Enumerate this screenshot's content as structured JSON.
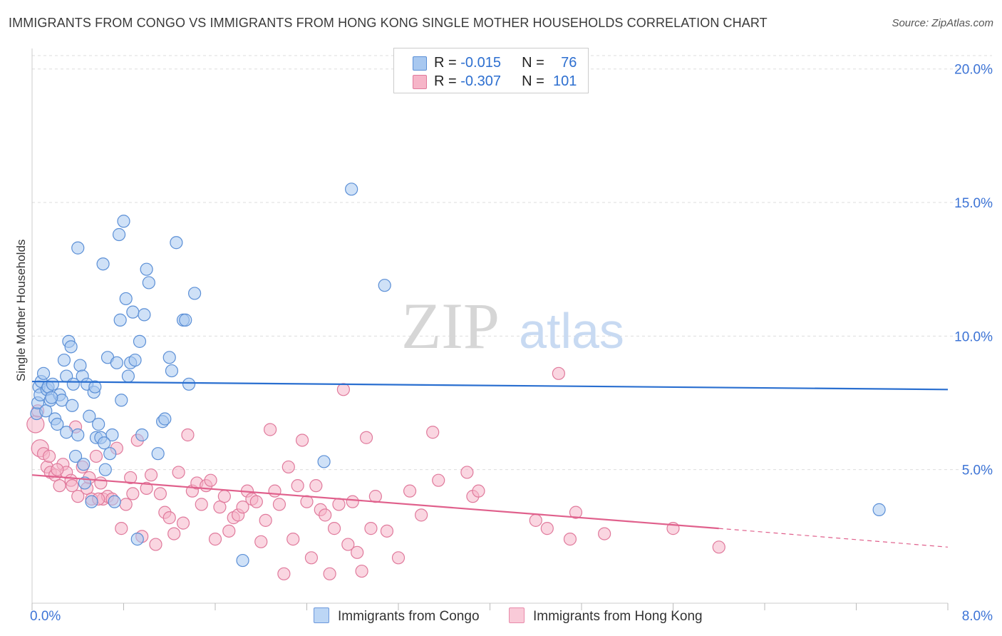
{
  "title": "IMMIGRANTS FROM CONGO VS IMMIGRANTS FROM HONG KONG SINGLE MOTHER HOUSEHOLDS CORRELATION CHART",
  "source": "Source: ZipAtlas.com",
  "watermark": {
    "zip": "ZIP",
    "atlas": "atlas"
  },
  "legend": {
    "rows": [
      {
        "r_label": "R = ",
        "r_value": "-0.015",
        "n_label": "N = ",
        "n_value": "76"
      },
      {
        "r_label": "R = ",
        "r_value": "-0.307",
        "n_label": "N = ",
        "n_value": "101"
      }
    ]
  },
  "bottom_legend": [
    "Immigrants from Congo",
    "Immigrants from Hong Kong"
  ],
  "colors": {
    "congo_fill": "#a8c8f0",
    "congo_stroke": "#5b8fd6",
    "congo_line": "#2a6fd0",
    "hk_fill": "#f6b5c8",
    "hk_stroke": "#e07a9c",
    "hk_line": "#e0608c",
    "tick_label": "#3d74d6",
    "grid": "#dddddd"
  },
  "chart_data": {
    "type": "scatter",
    "title": "IMMIGRANTS FROM CONGO VS IMMIGRANTS FROM HONG KONG SINGLE MOTHER HOUSEHOLDS CORRELATION CHART",
    "xlabel": "",
    "ylabel": "Single Mother Households",
    "xlim": [
      0,
      8
    ],
    "ylim": [
      0,
      20.5
    ],
    "x_tick_labels": [
      "0.0%",
      "8.0%"
    ],
    "y_ticks": [
      5,
      10,
      15,
      20
    ],
    "y_tick_labels": [
      "5.0%",
      "10.0%",
      "15.0%",
      "20.0%"
    ],
    "series": [
      {
        "name": "Immigrants from Congo",
        "R": -0.015,
        "N": 76,
        "trend": {
          "x0": 0,
          "y0": 8.3,
          "x1": 8,
          "y1": 8.0
        },
        "points": [
          [
            0.04,
            7.1
          ],
          [
            0.05,
            7.5
          ],
          [
            0.06,
            8.1
          ],
          [
            0.07,
            7.8
          ],
          [
            0.08,
            8.3
          ],
          [
            0.1,
            8.6
          ],
          [
            0.12,
            7.2
          ],
          [
            0.13,
            8.0
          ],
          [
            0.14,
            8.1
          ],
          [
            0.16,
            7.6
          ],
          [
            0.18,
            8.2
          ],
          [
            0.2,
            6.9
          ],
          [
            0.22,
            6.7
          ],
          [
            0.24,
            7.8
          ],
          [
            0.26,
            7.6
          ],
          [
            0.28,
            9.1
          ],
          [
            0.3,
            8.5
          ],
          [
            0.32,
            9.8
          ],
          [
            0.34,
            9.6
          ],
          [
            0.36,
            8.2
          ],
          [
            0.38,
            5.5
          ],
          [
            0.4,
            6.3
          ],
          [
            0.42,
            8.9
          ],
          [
            0.44,
            8.5
          ],
          [
            0.46,
            4.5
          ],
          [
            0.48,
            8.2
          ],
          [
            0.5,
            7.0
          ],
          [
            0.52,
            3.8
          ],
          [
            0.54,
            7.9
          ],
          [
            0.56,
            6.2
          ],
          [
            0.58,
            6.7
          ],
          [
            0.6,
            6.2
          ],
          [
            0.62,
            12.7
          ],
          [
            0.64,
            5.0
          ],
          [
            0.66,
            9.2
          ],
          [
            0.68,
            5.6
          ],
          [
            0.7,
            6.3
          ],
          [
            0.72,
            3.8
          ],
          [
            0.74,
            9.0
          ],
          [
            0.76,
            13.8
          ],
          [
            0.78,
            7.6
          ],
          [
            0.8,
            14.3
          ],
          [
            0.82,
            11.4
          ],
          [
            0.84,
            8.5
          ],
          [
            0.86,
            9.0
          ],
          [
            0.88,
            10.9
          ],
          [
            0.9,
            9.1
          ],
          [
            0.92,
            2.4
          ],
          [
            0.94,
            9.8
          ],
          [
            0.96,
            6.3
          ],
          [
            0.98,
            10.8
          ],
          [
            1.0,
            12.5
          ],
          [
            1.02,
            12.0
          ],
          [
            1.1,
            5.6
          ],
          [
            1.14,
            6.8
          ],
          [
            1.16,
            6.9
          ],
          [
            1.2,
            9.2
          ],
          [
            1.22,
            8.7
          ],
          [
            1.26,
            13.5
          ],
          [
            1.32,
            10.6
          ],
          [
            1.34,
            10.6
          ],
          [
            1.37,
            8.2
          ],
          [
            1.42,
            11.6
          ],
          [
            1.84,
            1.6
          ],
          [
            2.55,
            5.3
          ],
          [
            2.79,
            15.5
          ],
          [
            3.08,
            11.9
          ],
          [
            7.4,
            3.5
          ],
          [
            0.4,
            13.3
          ],
          [
            0.77,
            10.6
          ],
          [
            0.35,
            7.4
          ],
          [
            0.3,
            6.4
          ],
          [
            0.17,
            7.7
          ],
          [
            0.55,
            8.1
          ],
          [
            0.63,
            6.0
          ],
          [
            0.45,
            5.2
          ]
        ]
      },
      {
        "name": "Immigrants from Hong Kong",
        "R": -0.307,
        "N": 101,
        "trend": {
          "x0": 0,
          "y0": 4.8,
          "x1": 6.0,
          "y1": 2.8,
          "dash_to_x": 8,
          "dash_to_y": 2.1
        },
        "points": [
          [
            0.03,
            6.7
          ],
          [
            0.05,
            7.2
          ],
          [
            0.07,
            5.8
          ],
          [
            0.1,
            5.6
          ],
          [
            0.13,
            5.1
          ],
          [
            0.16,
            4.9
          ],
          [
            0.2,
            4.8
          ],
          [
            0.24,
            4.4
          ],
          [
            0.27,
            5.2
          ],
          [
            0.3,
            4.9
          ],
          [
            0.34,
            4.6
          ],
          [
            0.38,
            6.6
          ],
          [
            0.4,
            4.0
          ],
          [
            0.44,
            5.1
          ],
          [
            0.48,
            4.3
          ],
          [
            0.52,
            3.9
          ],
          [
            0.56,
            5.5
          ],
          [
            0.6,
            4.5
          ],
          [
            0.62,
            3.9
          ],
          [
            0.66,
            4.0
          ],
          [
            0.7,
            3.9
          ],
          [
            0.74,
            5.8
          ],
          [
            0.78,
            2.8
          ],
          [
            0.82,
            3.7
          ],
          [
            0.86,
            4.7
          ],
          [
            0.88,
            4.1
          ],
          [
            0.92,
            6.1
          ],
          [
            0.96,
            2.5
          ],
          [
            1.0,
            4.3
          ],
          [
            1.04,
            4.8
          ],
          [
            1.08,
            2.2
          ],
          [
            1.12,
            4.1
          ],
          [
            1.16,
            3.4
          ],
          [
            1.2,
            3.2
          ],
          [
            1.24,
            2.6
          ],
          [
            1.28,
            4.9
          ],
          [
            1.32,
            3.0
          ],
          [
            1.36,
            6.3
          ],
          [
            1.4,
            4.2
          ],
          [
            1.44,
            4.5
          ],
          [
            1.48,
            3.7
          ],
          [
            1.52,
            4.4
          ],
          [
            1.56,
            4.6
          ],
          [
            1.6,
            2.4
          ],
          [
            1.64,
            3.6
          ],
          [
            1.68,
            4.0
          ],
          [
            1.72,
            2.7
          ],
          [
            1.76,
            3.2
          ],
          [
            1.8,
            3.3
          ],
          [
            1.84,
            3.6
          ],
          [
            1.88,
            4.2
          ],
          [
            1.92,
            3.9
          ],
          [
            1.96,
            3.8
          ],
          [
            2.0,
            2.3
          ],
          [
            2.04,
            3.1
          ],
          [
            2.08,
            6.5
          ],
          [
            2.12,
            4.2
          ],
          [
            2.16,
            3.7
          ],
          [
            2.2,
            1.1
          ],
          [
            2.24,
            5.1
          ],
          [
            2.28,
            2.4
          ],
          [
            2.32,
            4.4
          ],
          [
            2.36,
            6.1
          ],
          [
            2.4,
            3.8
          ],
          [
            2.44,
            1.7
          ],
          [
            2.48,
            4.4
          ],
          [
            2.52,
            3.5
          ],
          [
            2.56,
            3.3
          ],
          [
            2.6,
            1.1
          ],
          [
            2.64,
            2.8
          ],
          [
            2.68,
            3.7
          ],
          [
            2.72,
            8.0
          ],
          [
            2.76,
            2.2
          ],
          [
            2.8,
            3.8
          ],
          [
            2.84,
            1.9
          ],
          [
            2.88,
            1.2
          ],
          [
            2.92,
            6.2
          ],
          [
            2.96,
            2.8
          ],
          [
            3.0,
            4.0
          ],
          [
            3.1,
            2.7
          ],
          [
            3.2,
            1.7
          ],
          [
            3.3,
            4.2
          ],
          [
            3.4,
            3.3
          ],
          [
            3.5,
            6.4
          ],
          [
            3.55,
            4.6
          ],
          [
            3.8,
            4.9
          ],
          [
            3.85,
            4.0
          ],
          [
            3.9,
            4.2
          ],
          [
            4.4,
            3.1
          ],
          [
            4.5,
            2.8
          ],
          [
            4.6,
            8.6
          ],
          [
            4.7,
            2.4
          ],
          [
            4.75,
            3.4
          ],
          [
            5.0,
            2.6
          ],
          [
            5.6,
            2.8
          ],
          [
            6.0,
            2.1
          ],
          [
            0.15,
            5.5
          ],
          [
            0.22,
            5.0
          ],
          [
            0.35,
            4.4
          ],
          [
            0.5,
            4.7
          ],
          [
            0.58,
            3.9
          ]
        ]
      }
    ]
  }
}
